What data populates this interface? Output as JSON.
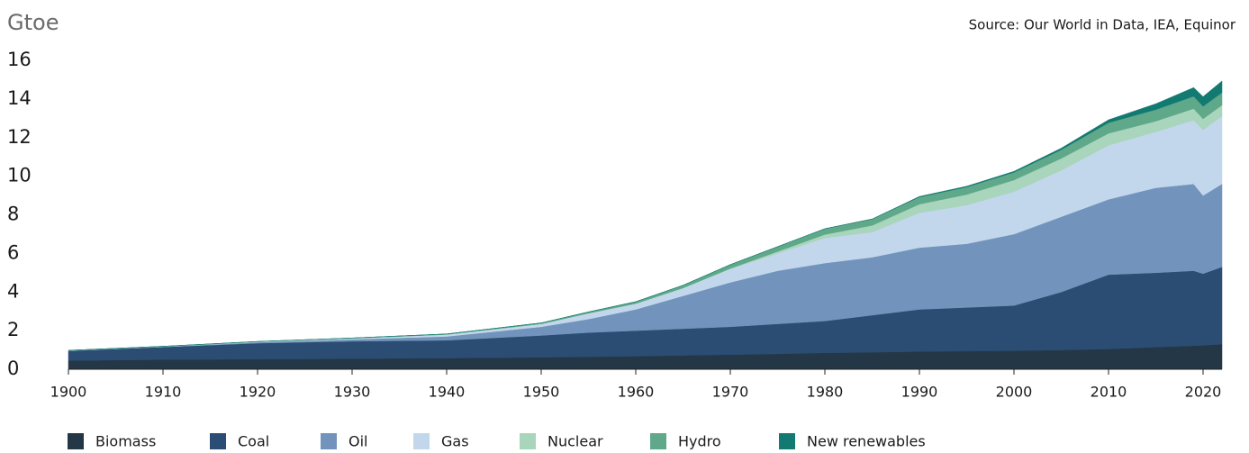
{
  "chart_data": {
    "type": "stacked_area",
    "ylabel": "Gtoe",
    "source": "Source: Our World in Data, IEA, Equinor",
    "x": [
      1900,
      1910,
      1920,
      1930,
      1940,
      1950,
      1955,
      1960,
      1965,
      1970,
      1975,
      1980,
      1985,
      1990,
      1995,
      2000,
      2005,
      2010,
      2015,
      2019,
      2020,
      2022
    ],
    "series": [
      {
        "name": "Biomass",
        "color": "#243746",
        "values": [
          0.45,
          0.5,
          0.52,
          0.55,
          0.58,
          0.62,
          0.65,
          0.68,
          0.72,
          0.76,
          0.8,
          0.85,
          0.88,
          0.92,
          0.94,
          0.96,
          1.0,
          1.05,
          1.15,
          1.22,
          1.24,
          1.3
        ]
      },
      {
        "name": "Coal",
        "color": "#2b4d73",
        "values": [
          0.5,
          0.65,
          0.83,
          0.9,
          0.92,
          1.13,
          1.25,
          1.32,
          1.38,
          1.44,
          1.55,
          1.65,
          1.92,
          2.18,
          2.26,
          2.34,
          3.0,
          3.85,
          3.85,
          3.88,
          3.71,
          4.0
        ]
      },
      {
        "name": "Oil",
        "color": "#7294bc",
        "values": [
          0.02,
          0.02,
          0.05,
          0.1,
          0.2,
          0.45,
          0.7,
          1.1,
          1.7,
          2.3,
          2.75,
          3.0,
          3.0,
          3.2,
          3.3,
          3.7,
          3.9,
          3.9,
          4.4,
          4.5,
          4.05,
          4.3
        ]
      },
      {
        "name": "Gas",
        "color": "#c3d7ec",
        "values": [
          0,
          0.01,
          0.02,
          0.05,
          0.1,
          0.15,
          0.3,
          0.3,
          0.4,
          0.7,
          0.9,
          1.3,
          1.3,
          1.8,
          2.0,
          2.2,
          2.4,
          2.8,
          2.9,
          3.3,
          3.4,
          3.5
        ]
      },
      {
        "name": "Nuclear",
        "color": "#a8d5bb",
        "values": [
          0,
          0,
          0,
          0,
          0,
          0,
          0,
          0,
          0.01,
          0.02,
          0.1,
          0.18,
          0.35,
          0.45,
          0.55,
          0.6,
          0.62,
          0.62,
          0.55,
          0.6,
          0.57,
          0.58
        ]
      },
      {
        "name": "Hydro",
        "color": "#5fa88a",
        "values": [
          0.01,
          0.01,
          0.02,
          0.02,
          0.03,
          0.05,
          0.07,
          0.1,
          0.14,
          0.2,
          0.25,
          0.3,
          0.33,
          0.37,
          0.39,
          0.4,
          0.45,
          0.55,
          0.6,
          0.64,
          0.65,
          0.65
        ]
      },
      {
        "name": "New renewables",
        "color": "#127a71",
        "values": [
          0,
          0,
          0,
          0,
          0,
          0,
          0,
          0,
          0,
          0,
          0,
          0,
          0,
          0.03,
          0.04,
          0.05,
          0.08,
          0.15,
          0.3,
          0.45,
          0.5,
          0.6
        ]
      }
    ],
    "xlim": [
      1900,
      2022
    ],
    "xticks": [
      1900,
      1910,
      1920,
      1930,
      1940,
      1950,
      1960,
      1970,
      1980,
      1990,
      2000,
      2010,
      2020
    ],
    "ylim": [
      0,
      16
    ],
    "yticks": [
      0,
      2,
      4,
      6,
      8,
      10,
      12,
      14,
      16
    ],
    "grid": false,
    "legend": "bottom"
  }
}
